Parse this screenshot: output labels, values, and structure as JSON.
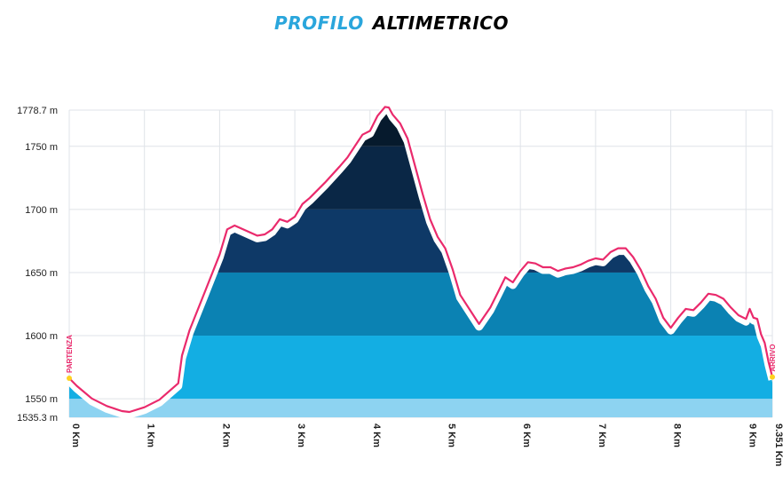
{
  "title": {
    "part1": "PROFILO",
    "part2": "ALTIMETRICO"
  },
  "colors": {
    "band1": "#8dd3f1",
    "band2": "#13aee3",
    "band3": "#0b82b3",
    "band4": "#0e3967",
    "band5": "#0a2746",
    "band6": "#061a2d",
    "outline": "#ea2a6c",
    "grid": "#dfe3e8",
    "axis_text": "#222222",
    "marker": "#ffd21f"
  },
  "chart_data": {
    "type": "area",
    "title": "",
    "xlabel": "",
    "ylabel": "",
    "xlim": [
      0,
      9.351
    ],
    "ylim": [
      1535.3,
      1778.7
    ],
    "y_ticks": [
      {
        "value": 1778.7,
        "label": "1778.7 m"
      },
      {
        "value": 1750,
        "label": "1750 m"
      },
      {
        "value": 1700,
        "label": "1700 m"
      },
      {
        "value": 1650,
        "label": "1650 m"
      },
      {
        "value": 1600,
        "label": "1600 m"
      },
      {
        "value": 1550,
        "label": "1550 m"
      },
      {
        "value": 1535.3,
        "label": "1535.3 m"
      }
    ],
    "x_ticks": [
      {
        "value": 0,
        "label": "0 Km"
      },
      {
        "value": 1,
        "label": "1 Km"
      },
      {
        "value": 2,
        "label": "2 Km"
      },
      {
        "value": 3,
        "label": "3 Km"
      },
      {
        "value": 4,
        "label": "4 Km"
      },
      {
        "value": 5,
        "label": "5 Km"
      },
      {
        "value": 6,
        "label": "6 Km"
      },
      {
        "value": 7,
        "label": "7 Km"
      },
      {
        "value": 8,
        "label": "8 Km"
      },
      {
        "value": 9,
        "label": "9 Km"
      },
      {
        "value": 9.351,
        "label": "9.351 Km"
      }
    ],
    "elevation_bands": [
      1550,
      1600,
      1650,
      1700,
      1750
    ],
    "start_label": "PARTENZA",
    "finish_label": "ARRIVO",
    "grid": true,
    "series": [
      {
        "x": [
          0,
          0.1,
          0.3,
          0.5,
          0.7,
          0.8,
          1.0,
          1.2,
          1.45,
          1.5,
          1.6,
          1.8,
          2.0,
          2.1,
          2.2,
          2.5,
          2.6,
          2.7,
          2.8,
          2.9,
          3.0,
          3.1,
          3.2,
          3.4,
          3.6,
          3.7,
          3.8,
          3.9,
          4.0,
          4.1,
          4.2,
          4.25,
          4.3,
          4.4,
          4.5,
          4.6,
          4.7,
          4.8,
          4.9,
          5.0,
          5.1,
          5.2,
          5.45,
          5.6,
          5.7,
          5.8,
          5.9,
          6.0,
          6.1,
          6.2,
          6.3,
          6.4,
          6.5,
          6.6,
          6.7,
          6.8,
          6.9,
          7.0,
          7.1,
          7.2,
          7.3,
          7.4,
          7.5,
          7.6,
          7.7,
          7.8,
          7.9,
          8.0,
          8.1,
          8.2,
          8.3,
          8.4,
          8.5,
          8.6,
          8.7,
          8.8,
          8.9,
          9.0,
          9.05,
          9.1,
          9.15,
          9.2,
          9.25,
          9.3,
          9.351
        ],
        "y": [
          1562,
          1556,
          1546,
          1540,
          1536,
          1535.3,
          1539,
          1545,
          1558,
          1580,
          1600,
          1630,
          1660,
          1680,
          1683,
          1675,
          1676,
          1680,
          1688,
          1686,
          1690,
          1700,
          1705,
          1717,
          1730,
          1737,
          1746,
          1755,
          1758,
          1770,
          1777,
          1776.5,
          1771,
          1764,
          1752,
          1730,
          1708,
          1688,
          1674,
          1665,
          1648,
          1628,
          1605,
          1618,
          1630,
          1642,
          1638,
          1647,
          1654,
          1653,
          1650,
          1650,
          1647,
          1649,
          1650,
          1652,
          1655,
          1657,
          1656,
          1662,
          1665,
          1665,
          1658,
          1648,
          1635,
          1625,
          1610,
          1602,
          1610,
          1617,
          1616,
          1622,
          1629,
          1628,
          1625,
          1618,
          1612,
          1609,
          1617,
          1610,
          1609,
          1597,
          1590,
          1575,
          1563
        ]
      }
    ]
  }
}
